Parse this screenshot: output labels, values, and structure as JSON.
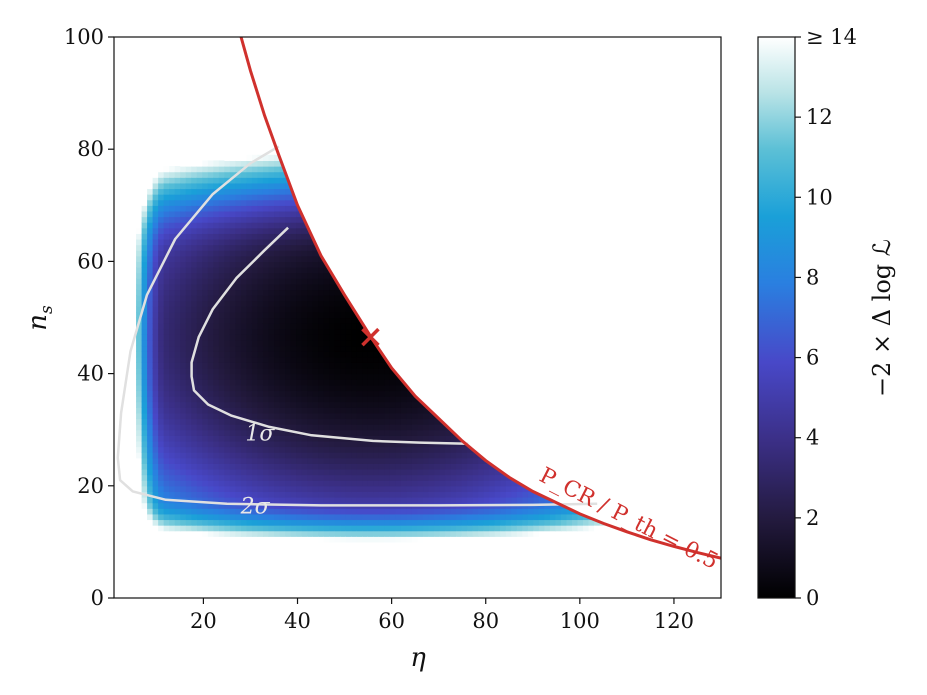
{
  "chart_data": {
    "type": "heatmap",
    "xlabel": "η",
    "ylabel": "n_s",
    "xlim": [
      1,
      130
    ],
    "ylim": [
      0,
      100
    ],
    "x_ticks": [
      "20",
      "40",
      "60",
      "80",
      "100",
      "120"
    ],
    "y_ticks": [
      "0",
      "20",
      "40",
      "60",
      "80",
      "100"
    ],
    "colorbar": {
      "label": "−2 × Δ log ℒ",
      "range": [
        0,
        14
      ],
      "ticks": [
        "0",
        "2",
        "4",
        "6",
        "8",
        "10",
        "12",
        "≥ 14"
      ],
      "colors": [
        "#000000",
        "#231a3e",
        "#3b2f86",
        "#4848c8",
        "#2a7fe0",
        "#1aa0d8",
        "#5cc0d6",
        "#b9e3e6",
        "#ffffff"
      ]
    },
    "best_fit": {
      "eta": 55.5,
      "n_s": 46.5,
      "marker": "x",
      "color": "#d0312d"
    },
    "cutoff": {
      "label": "P_CR / P_th = 0.5",
      "color": "#d0312d",
      "points": [
        [
          28,
          100
        ],
        [
          30,
          94
        ],
        [
          33,
          86
        ],
        [
          36,
          79
        ],
        [
          40,
          70
        ],
        [
          45,
          61
        ],
        [
          50,
          54
        ],
        [
          56,
          46
        ],
        [
          60,
          41
        ],
        [
          65,
          36
        ],
        [
          70,
          32
        ],
        [
          75,
          28
        ],
        [
          80,
          24.5
        ],
        [
          85,
          21.5
        ],
        [
          90,
          19
        ],
        [
          95,
          17
        ],
        [
          100,
          15
        ],
        [
          105,
          13.3
        ],
        [
          110,
          11.8
        ],
        [
          115,
          10.4
        ],
        [
          120,
          9.2
        ],
        [
          125,
          8.1
        ],
        [
          130,
          7.1
        ]
      ]
    },
    "contours": [
      {
        "name": "1σ",
        "label": "1σ",
        "points": [
          [
            38,
            66
          ],
          [
            33,
            62
          ],
          [
            27,
            57
          ],
          [
            22,
            51.5
          ],
          [
            19,
            46.5
          ],
          [
            17.5,
            42
          ],
          [
            17.5,
            39.5
          ],
          [
            18,
            37
          ],
          [
            21,
            34.5
          ],
          [
            26,
            32.5
          ],
          [
            34,
            30.5
          ],
          [
            43,
            29
          ],
          [
            56,
            28
          ],
          [
            66,
            27.7
          ],
          [
            76.3,
            27.5
          ]
        ],
        "label_at": [
          32,
          29.5
        ]
      },
      {
        "name": "2σ",
        "label": "2σ",
        "points": [
          [
            36,
            80.5
          ],
          [
            30,
            77.5
          ],
          [
            22,
            72
          ],
          [
            14,
            64
          ],
          [
            8,
            54
          ],
          [
            4.5,
            44
          ],
          [
            2.5,
            33
          ],
          [
            1.8,
            25
          ],
          [
            2.3,
            21
          ],
          [
            5,
            19
          ],
          [
            12,
            17.5
          ],
          [
            25,
            16.8
          ],
          [
            45,
            16.5
          ],
          [
            70,
            16.5
          ],
          [
            90,
            16.6
          ],
          [
            103.7,
            16.8
          ]
        ],
        "label_at": [
          31,
          16.5
        ]
      }
    ]
  }
}
